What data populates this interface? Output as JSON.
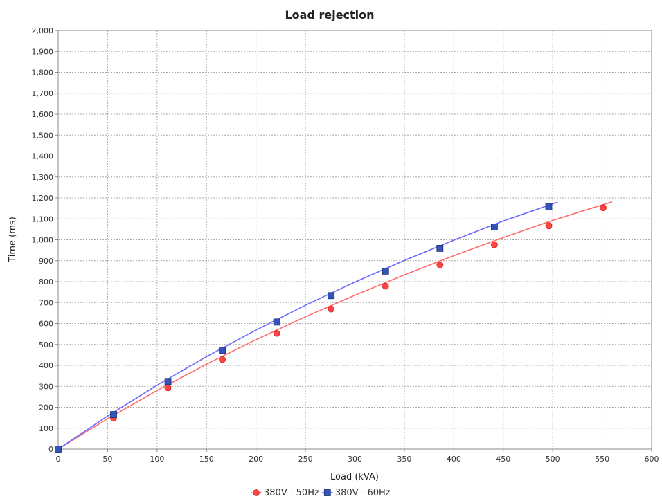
{
  "chart_data": {
    "type": "scatter",
    "title": "Load rejection",
    "xlabel": "Load (kVA)",
    "ylabel": "Time (ms)",
    "xlim": [
      0,
      600
    ],
    "ylim": [
      0,
      2000
    ],
    "x_ticks": [
      0,
      50,
      100,
      150,
      200,
      250,
      300,
      350,
      400,
      450,
      500,
      550,
      600
    ],
    "y_ticks": [
      0,
      100,
      200,
      300,
      400,
      500,
      600,
      700,
      800,
      900,
      1000,
      1100,
      1200,
      1300,
      1400,
      1500,
      1600,
      1700,
      1800,
      1900,
      2000
    ],
    "x_tick_labels": [
      "0",
      "50",
      "100",
      "150",
      "200",
      "250",
      "300",
      "350",
      "400",
      "450",
      "500",
      "550",
      "600"
    ],
    "y_tick_labels": [
      "0",
      "100",
      "200",
      "300",
      "400",
      "500",
      "600",
      "700",
      "800",
      "900",
      "1,000",
      "1,100",
      "1,200",
      "1,300",
      "1,400",
      "1,500",
      "1,600",
      "1,700",
      "1,800",
      "1,900",
      "2,000"
    ],
    "grid": true,
    "legend_position": "bottom",
    "series": [
      {
        "name": "380V - 50Hz",
        "color": "#ff4444",
        "marker": "circle",
        "x": [
          0,
          56,
          111,
          166,
          221,
          276,
          331,
          386,
          441,
          496,
          551
        ],
        "y": [
          0,
          148,
          293,
          428,
          553,
          669,
          778,
          880,
          976,
          1067,
          1153
        ],
        "fit_x": [
          0,
          50,
          100,
          150,
          200,
          250,
          300,
          350,
          400,
          450,
          500,
          560
        ],
        "fit_y": [
          0,
          145,
          280,
          406,
          523,
          632,
          735,
          832,
          924,
          1011,
          1093,
          1181
        ]
      },
      {
        "name": "380V - 60Hz",
        "color": "#3355bb",
        "marker": "square",
        "x": [
          0,
          56,
          111,
          166,
          221,
          276,
          331,
          386,
          441,
          496
        ],
        "y": [
          0,
          165,
          323,
          472,
          607,
          733,
          850,
          959,
          1061,
          1157
        ],
        "fit_x": [
          0,
          50,
          100,
          150,
          200,
          250,
          300,
          350,
          400,
          450,
          505
        ],
        "fit_y": [
          0,
          158,
          305,
          442,
          569,
          687,
          798,
          901,
          998,
          1090,
          1180
        ]
      }
    ]
  }
}
